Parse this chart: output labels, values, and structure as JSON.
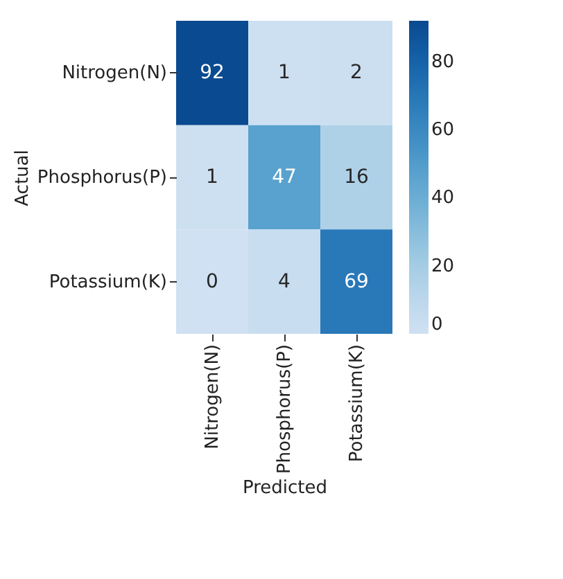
{
  "chart_data": {
    "type": "heatmap",
    "xlabel": "Predicted",
    "ylabel": "Actual",
    "categories": [
      "Nitrogen(N)",
      "Phosphorus(P)",
      "Potassium(K)"
    ],
    "y_categories": [
      "Nitrogen(N)",
      "Phosphorus(P)",
      "Potassium(K)"
    ],
    "cells": [
      [
        92,
        1,
        2
      ],
      [
        1,
        47,
        16
      ],
      [
        0,
        4,
        69
      ]
    ],
    "clim": [
      0,
      92
    ],
    "cticks": [
      0,
      20,
      40,
      60,
      80
    ],
    "data_labels": true
  }
}
